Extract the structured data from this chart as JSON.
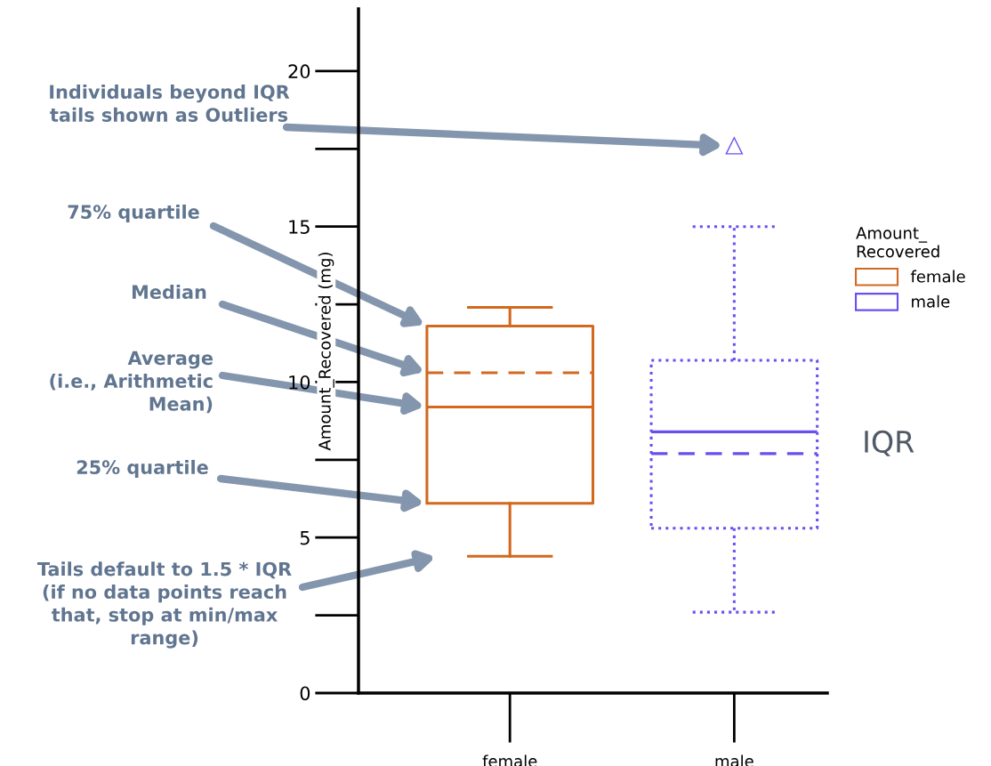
{
  "chart_data": {
    "type": "box",
    "ylabel": "Amount_Recovered (mg)",
    "legend_title": "Amount_\nRecovered",
    "legend": "right",
    "grid": false,
    "categories": [
      "female",
      "male"
    ],
    "ylim": [
      0,
      22
    ],
    "yticks": [
      0,
      5,
      10,
      15,
      20
    ],
    "series": [
      {
        "name": "female",
        "color": "#d2691e",
        "line_style": "solid",
        "marker": "triangle",
        "boxes": [
          {
            "low": 4.4,
            "q1": 6.1,
            "median": 10.3,
            "q3": 11.8,
            "high": 12.4,
            "mean": 9.2
          },
          null
        ]
      },
      {
        "name": "male",
        "color": "#6a4ff0",
        "line_style": "dotted",
        "marker": "triangle",
        "boxes": [
          null,
          {
            "low": 2.6,
            "q1": 5.3,
            "median": 7.7,
            "q3": 10.7,
            "high": 15.0,
            "mean": 8.4,
            "outliers": [
              17.6
            ]
          }
        ]
      }
    ],
    "annotations": [
      "Individuals beyond IQR\ntails shown as Outliers",
      "75% quartile",
      "Median",
      "Average\n(i.e., Arithmetic\nMean)",
      "25% quartile",
      "Tails default to 1.5 * IQR\n(if no data points reach\nthat, stop at min/max\nrange)",
      "IQR"
    ]
  }
}
